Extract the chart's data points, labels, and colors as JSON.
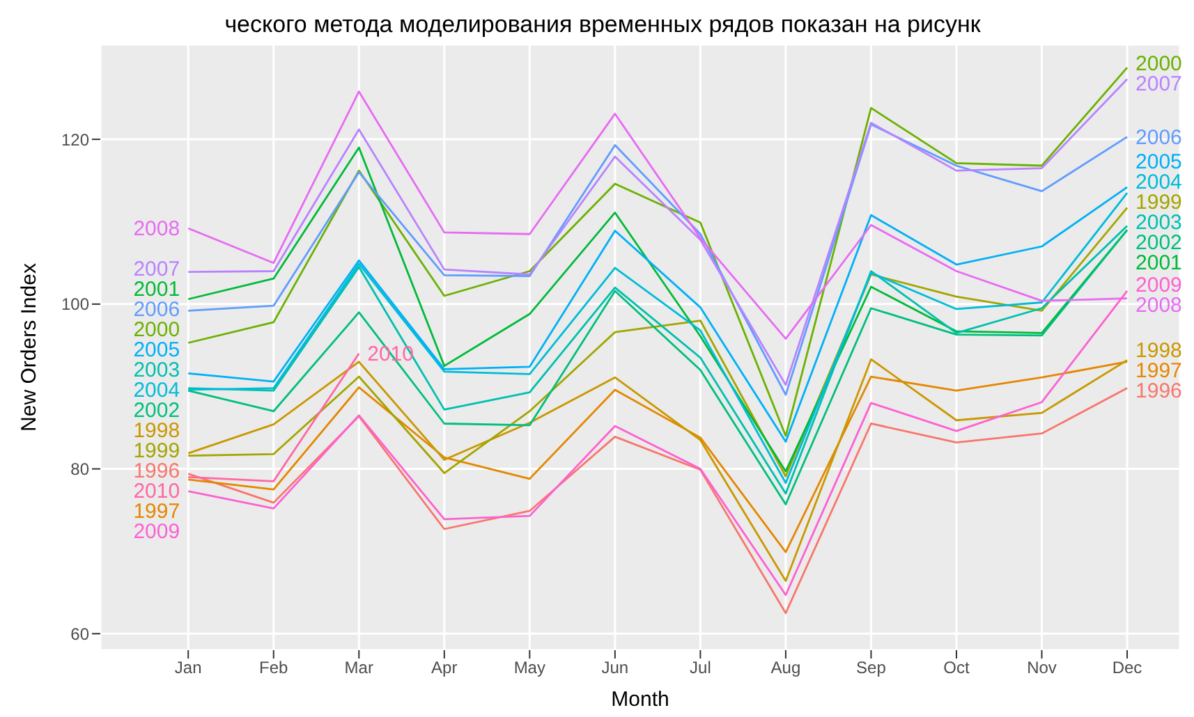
{
  "chart_data": {
    "type": "line",
    "xlabel": "Month",
    "ylabel": "New Orders Index",
    "annotations": [
      "ческого метода моделирования временных рядов показан на рисунк"
    ],
    "categories": [
      "Jan",
      "Feb",
      "Mar",
      "Apr",
      "May",
      "Jun",
      "Jul",
      "Aug",
      "Sep",
      "Oct",
      "Nov",
      "Dec"
    ],
    "ylim": [
      58,
      131.5
    ],
    "yticks": [
      60,
      80,
      100,
      120
    ],
    "grid": true,
    "legend": false,
    "marker": "none",
    "line_style": "solid",
    "series": [
      {
        "name": "1996",
        "color": "#f8766d",
        "values": [
          79.4,
          75.9,
          86.4,
          72.7,
          74.9,
          83.9,
          79.9,
          62.5,
          85.5,
          83.2,
          84.3,
          89.8
        ]
      },
      {
        "name": "1997",
        "color": "#e58700",
        "values": [
          78.7,
          77.5,
          89.9,
          81.4,
          78.8,
          89.6,
          83.8,
          69.9,
          91.2,
          89.5,
          91.1,
          93.0
        ]
      },
      {
        "name": "1998",
        "color": "#c99800",
        "values": [
          81.9,
          85.4,
          93.0,
          81.1,
          85.6,
          91.1,
          83.5,
          66.4,
          93.3,
          85.9,
          86.8,
          93.2
        ]
      },
      {
        "name": "1999",
        "color": "#a3a500",
        "values": [
          81.6,
          81.8,
          91.2,
          79.5,
          87.0,
          96.6,
          98.0,
          79.1,
          103.6,
          100.9,
          99.2,
          111.7
        ]
      },
      {
        "name": "2000",
        "color": "#6bb100",
        "values": [
          95.3,
          97.8,
          116.2,
          101.0,
          104.0,
          114.6,
          109.9,
          84.0,
          123.8,
          117.1,
          116.8,
          128.7
        ]
      },
      {
        "name": "2001",
        "color": "#00ba38",
        "values": [
          100.6,
          103.1,
          119.0,
          92.5,
          98.8,
          111.1,
          96.1,
          79.7,
          102.1,
          96.7,
          96.5,
          109.0
        ]
      },
      {
        "name": "2002",
        "color": "#00bf7d",
        "values": [
          89.5,
          87.0,
          99.0,
          85.5,
          85.3,
          101.6,
          92.0,
          75.7,
          99.5,
          96.3,
          96.2,
          109.0
        ]
      },
      {
        "name": "2003",
        "color": "#00c0af",
        "values": [
          89.8,
          89.5,
          104.5,
          87.2,
          89.3,
          102.0,
          93.5,
          77.0,
          104.0,
          96.5,
          99.5,
          109.5
        ]
      },
      {
        "name": "2004",
        "color": "#00bcd8",
        "values": [
          89.6,
          89.8,
          104.9,
          91.8,
          91.5,
          104.4,
          96.8,
          78.3,
          103.8,
          99.4,
          100.2,
          113.5
        ]
      },
      {
        "name": "2005",
        "color": "#00b0f6",
        "values": [
          91.6,
          90.6,
          105.3,
          92.1,
          92.4,
          108.9,
          99.6,
          83.3,
          110.8,
          104.8,
          107.0,
          114.2
        ]
      },
      {
        "name": "2006",
        "color": "#619cff",
        "values": [
          99.2,
          99.8,
          116.0,
          103.5,
          103.4,
          119.3,
          108.5,
          89.0,
          121.8,
          116.8,
          113.7,
          120.3
        ]
      },
      {
        "name": "2007",
        "color": "#b983ff",
        "values": [
          103.9,
          104.0,
          121.2,
          104.2,
          103.6,
          117.9,
          107.8,
          90.2,
          122.0,
          116.2,
          116.5,
          127.3
        ]
      },
      {
        "name": "2008",
        "color": "#e76bf3",
        "values": [
          109.2,
          105.0,
          125.8,
          108.7,
          108.5,
          123.1,
          108.0,
          95.8,
          109.6,
          104.0,
          100.4,
          100.7
        ]
      },
      {
        "name": "2009",
        "color": "#fd61d1",
        "values": [
          77.3,
          75.2,
          86.5,
          73.9,
          74.3,
          85.2,
          80.0,
          64.7,
          88.0,
          84.6,
          88.1,
          101.6
        ]
      },
      {
        "name": "2010",
        "color": "#ff67a4",
        "values": [
          79.0,
          78.5,
          94.0,
          null,
          null,
          null,
          null,
          null,
          null,
          null,
          null,
          null
        ]
      }
    ]
  }
}
